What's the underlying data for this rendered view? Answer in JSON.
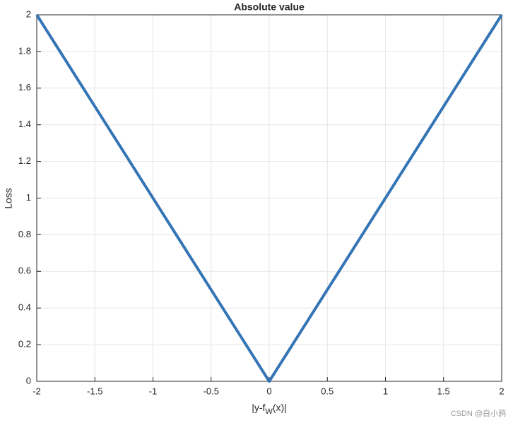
{
  "chart_data": {
    "type": "line",
    "title": "Absolute value",
    "xlabel": [
      "|y-f",
      "W",
      "(x)|"
    ],
    "ylabel": "Loss",
    "x": [
      -2,
      0,
      2
    ],
    "series": [
      {
        "color": "#3575b5",
        "values": [
          2,
          0,
          2
        ]
      }
    ],
    "xlim": [
      -2,
      2
    ],
    "xticks": [
      -2,
      -1.5,
      -1,
      -0.5,
      0,
      0.5,
      1,
      1.5,
      2
    ],
    "ylim": [
      0,
      2
    ],
    "yticks": [
      0,
      0.2,
      0.4,
      0.6,
      0.8,
      1,
      1.2,
      1.4,
      1.6,
      1.8,
      2
    ],
    "grid": true
  },
  "watermark": "CSDN @白小鸦"
}
